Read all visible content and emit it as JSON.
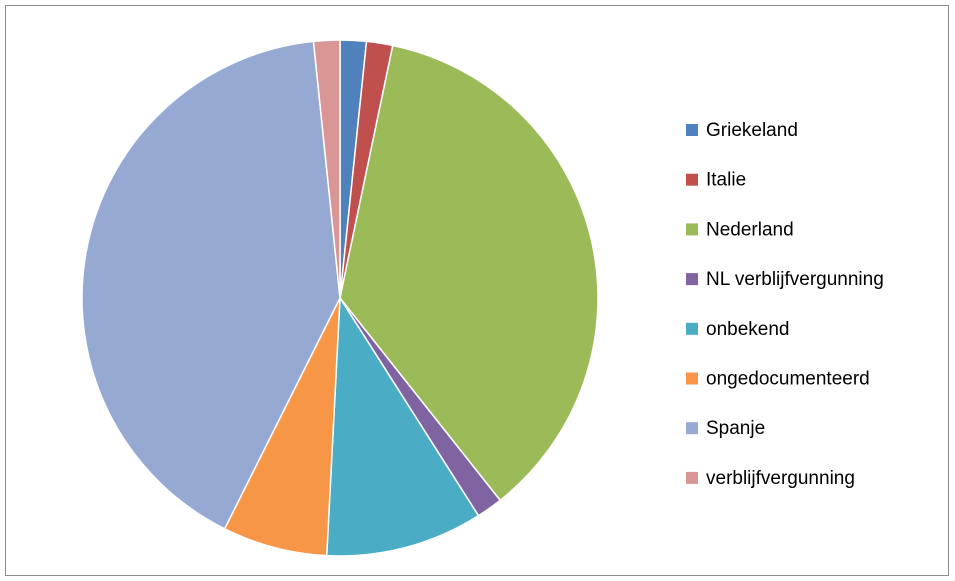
{
  "chart_data": {
    "type": "pie",
    "categories": [
      "Griekeland",
      "Italie",
      "Nederland",
      "NL verblijfvergunning",
      "onbekend",
      "ongedocumenteerd",
      "Spanje",
      "verblijfvergunning"
    ],
    "values": [
      1,
      1,
      22,
      1,
      6,
      4,
      25,
      1
    ],
    "colors": [
      "#4f81bd",
      "#c0504d",
      "#9bbb59",
      "#8064a2",
      "#4bacc6",
      "#f79646",
      "#95a9d3",
      "#d99694"
    ],
    "legend": "right"
  }
}
